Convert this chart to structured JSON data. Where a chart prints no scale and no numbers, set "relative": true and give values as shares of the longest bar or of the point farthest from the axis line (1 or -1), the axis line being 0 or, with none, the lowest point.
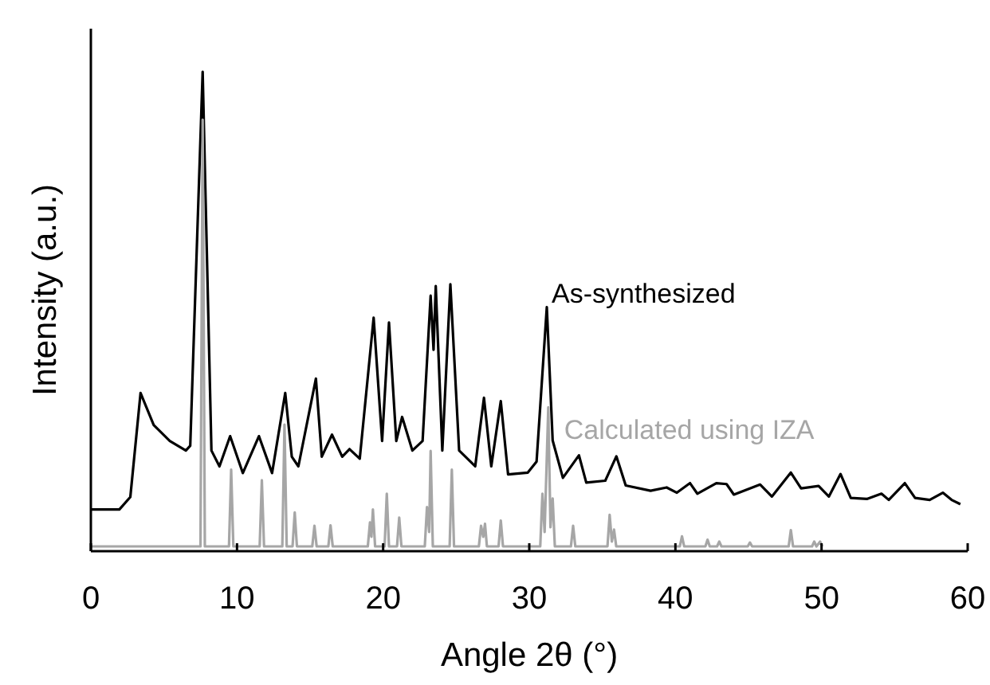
{
  "chart_data": {
    "type": "line",
    "relative": true,
    "xlabel": "Angle 2θ (°)",
    "ylabel": "Intensity (a.u.)",
    "xlim": [
      0,
      60
    ],
    "xticks": [
      0,
      10,
      20,
      30,
      40,
      50,
      60
    ],
    "legend": false,
    "grid": false,
    "marker": "none",
    "line_style": "solid",
    "series": [
      {
        "name": "As-synthesized",
        "color": "#000000",
        "x": [
          0,
          1.95,
          2.7,
          3.4,
          4.3,
          5.4,
          6.5,
          6.8,
          7.65,
          8.25,
          8.8,
          9.53,
          10.4,
          11.5,
          12.4,
          13.3,
          13.75,
          14.2,
          15.4,
          15.8,
          16.5,
          17.2,
          17.7,
          18.4,
          19.35,
          19.93,
          20.4,
          20.9,
          21.3,
          22.0,
          22.7,
          23.25,
          23.45,
          23.6,
          24.05,
          24.6,
          25.2,
          26.3,
          26.9,
          27.4,
          28.05,
          28.55,
          29.9,
          30.5,
          31.2,
          31.6,
          32.3,
          33.4,
          33.9,
          35.2,
          35.96,
          36.6,
          38.3,
          39.4,
          40.1,
          41.0,
          41.5,
          42.8,
          43.5,
          44.0,
          45.8,
          46.6,
          47.9,
          48.6,
          49.8,
          50.5,
          51.3,
          52.0,
          53.1,
          54.1,
          54.6,
          55.7,
          56.4,
          57.4,
          58.3,
          58.9,
          59.5
        ],
        "values": [
          0.087,
          0.087,
          0.113,
          0.33,
          0.263,
          0.23,
          0.21,
          0.22,
          1.0,
          0.21,
          0.177,
          0.24,
          0.163,
          0.24,
          0.163,
          0.33,
          0.197,
          0.177,
          0.36,
          0.197,
          0.243,
          0.197,
          0.213,
          0.193,
          0.487,
          0.23,
          0.477,
          0.23,
          0.28,
          0.21,
          0.23,
          0.533,
          0.42,
          0.553,
          0.21,
          0.557,
          0.21,
          0.177,
          0.32,
          0.177,
          0.313,
          0.16,
          0.164,
          0.187,
          0.509,
          0.231,
          0.153,
          0.2,
          0.143,
          0.147,
          0.198,
          0.137,
          0.126,
          0.133,
          0.122,
          0.142,
          0.12,
          0.142,
          0.14,
          0.118,
          0.139,
          0.114,
          0.164,
          0.131,
          0.136,
          0.114,
          0.161,
          0.111,
          0.109,
          0.12,
          0.107,
          0.142,
          0.111,
          0.107,
          0.122,
          0.107,
          0.098
        ]
      },
      {
        "name": "Calculated using IZA",
        "color": "#a6a6a6",
        "x": [
          0,
          7.5,
          7.65,
          7.8,
          9.45,
          9.6,
          9.75,
          11.55,
          11.7,
          11.85,
          13.1,
          13.25,
          13.4,
          13.8,
          13.95,
          14.1,
          15.15,
          15.3,
          15.45,
          16.25,
          16.4,
          16.55,
          18.95,
          19.1,
          19.2,
          19.3,
          19.45,
          20.1,
          20.25,
          20.4,
          20.95,
          21.1,
          21.25,
          22.85,
          23.0,
          23.15,
          23.25,
          23.4,
          23.55,
          24.55,
          24.7,
          24.85,
          26.55,
          26.7,
          26.85,
          26.97,
          27.1,
          27.9,
          28.05,
          28.2,
          30.75,
          30.9,
          31.05,
          31.3,
          31.45,
          31.6,
          31.75,
          32.85,
          33.0,
          33.15,
          35.35,
          35.5,
          35.65,
          35.8,
          35.95,
          40.3,
          40.45,
          40.6,
          42.05,
          42.2,
          42.35,
          42.85,
          43.0,
          43.15,
          44.95,
          45.1,
          45.25,
          47.75,
          47.9,
          48.05,
          49.35,
          49.5,
          49.65,
          49.9,
          50.05
        ],
        "values": [
          0.01,
          0.01,
          0.9,
          0.01,
          0.01,
          0.17,
          0.01,
          0.01,
          0.148,
          0.01,
          0.01,
          0.264,
          0.01,
          0.01,
          0.081,
          0.01,
          0.01,
          0.053,
          0.01,
          0.01,
          0.054,
          0.01,
          0.01,
          0.06,
          0.03,
          0.087,
          0.01,
          0.01,
          0.12,
          0.01,
          0.01,
          0.07,
          0.01,
          0.01,
          0.092,
          0.04,
          0.209,
          0.01,
          0.01,
          0.01,
          0.17,
          0.01,
          0.01,
          0.053,
          0.03,
          0.057,
          0.01,
          0.01,
          0.064,
          0.01,
          0.01,
          0.12,
          0.04,
          0.3,
          0.05,
          0.11,
          0.01,
          0.01,
          0.053,
          0.01,
          0.01,
          0.076,
          0.02,
          0.045,
          0.01,
          0.01,
          0.031,
          0.01,
          0.01,
          0.024,
          0.01,
          0.01,
          0.02,
          0.01,
          0.01,
          0.018,
          0.01,
          0.01,
          0.044,
          0.01,
          0.01,
          0.02,
          0.01,
          0.02,
          0.01
        ]
      }
    ]
  }
}
